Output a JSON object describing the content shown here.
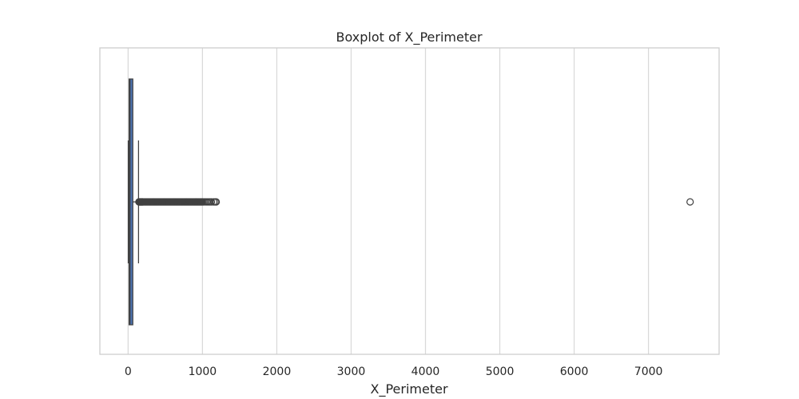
{
  "chart_data": {
    "type": "boxplot",
    "orientation": "horizontal",
    "title": "Boxplot of X_Perimeter",
    "xlabel": "X_Perimeter",
    "ylabel": "",
    "xlim": [
      -380,
      7950
    ],
    "x_ticks": [
      0,
      1000,
      2000,
      3000,
      4000,
      5000,
      6000,
      7000
    ],
    "grid": "vertical",
    "box": {
      "whisker_low": 2,
      "q1": 13,
      "median": 26,
      "q3": 63,
      "whisker_high": 140,
      "color": "#4c72b0"
    },
    "outliers": [
      145,
      150,
      155,
      160,
      165,
      170,
      175,
      180,
      185,
      190,
      195,
      200,
      210,
      220,
      230,
      240,
      250,
      260,
      270,
      280,
      290,
      300,
      310,
      320,
      330,
      340,
      350,
      360,
      370,
      380,
      390,
      400,
      410,
      420,
      430,
      440,
      450,
      460,
      470,
      480,
      490,
      500,
      510,
      520,
      530,
      540,
      550,
      560,
      570,
      580,
      590,
      600,
      610,
      620,
      630,
      640,
      650,
      660,
      670,
      680,
      690,
      700,
      710,
      720,
      730,
      740,
      750,
      760,
      770,
      780,
      790,
      800,
      810,
      820,
      830,
      840,
      850,
      860,
      870,
      880,
      890,
      900,
      910,
      920,
      930,
      940,
      950,
      960,
      970,
      980,
      990,
      1000,
      1020,
      1040,
      1060,
      1080,
      1100,
      1120,
      1150,
      1170,
      1185,
      7560
    ]
  }
}
